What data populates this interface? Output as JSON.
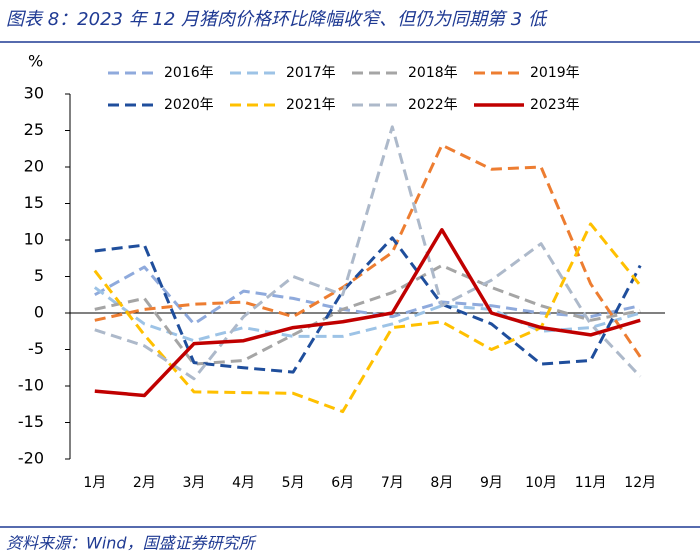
{
  "chart_data": {
    "type": "line",
    "title": "图表 8：2023 年 12 月猪肉价格环比降幅收窄、但仍为同期第 3 低",
    "source": "资料来源：Wind，国盛证券研究所",
    "y_unit": "%",
    "categories": [
      "1月",
      "2月",
      "3月",
      "4月",
      "5月",
      "6月",
      "7月",
      "8月",
      "9月",
      "10月",
      "11月",
      "12月"
    ],
    "ylim": [
      -20,
      30
    ],
    "yticks": [
      -20,
      -15,
      -10,
      -5,
      0,
      5,
      10,
      15,
      20,
      25,
      30
    ],
    "grid": false,
    "series": [
      {
        "name": "2016年",
        "color": "#8faadc",
        "dashed": true,
        "values": [
          2.5,
          6.3,
          -1.5,
          3,
          2,
          0.5,
          -0.5,
          1.5,
          1,
          0,
          -0.5,
          1
        ]
      },
      {
        "name": "2017年",
        "color": "#9dc3e6",
        "dashed": true,
        "values": [
          3.5,
          -1.5,
          -3.8,
          -2,
          -3.2,
          -3.2,
          -1.5,
          1,
          0.5,
          -2.5,
          -2,
          0
        ]
      },
      {
        "name": "2018年",
        "color": "#a5a5a5",
        "dashed": true,
        "values": [
          0.5,
          2,
          -7,
          -6.5,
          -3,
          0.5,
          2.8,
          6.5,
          3.5,
          1,
          -1,
          0.3
        ]
      },
      {
        "name": "2019年",
        "color": "#ed7d31",
        "dashed": true,
        "values": [
          -1,
          0.5,
          1.2,
          1.5,
          -0.5,
          3.5,
          8.3,
          23,
          19.7,
          20,
          4,
          -6
        ]
      },
      {
        "name": "2020年",
        "color": "#1f4e9c",
        "dashed": true,
        "values": [
          8.5,
          9.3,
          -6.8,
          -7.5,
          -8.1,
          3,
          10.3,
          1.2,
          -1.5,
          -7,
          -6.5,
          6.5
        ]
      },
      {
        "name": "2021年",
        "color": "#ffc000",
        "dashed": true,
        "values": [
          5.8,
          -3,
          -10.8,
          -10.9,
          -11,
          -13.5,
          -2,
          -1.2,
          -5,
          -2,
          12.2,
          3.8
        ]
      },
      {
        "name": "2022年",
        "color": "#adb9ca",
        "dashed": true,
        "values": [
          -2.3,
          -4.5,
          -9,
          -0.5,
          5,
          2.5,
          25.5,
          1,
          4.5,
          9.5,
          -1.5,
          -8.7
        ]
      },
      {
        "name": "2023年",
        "color": "#c00000",
        "dashed": false,
        "values": [
          -10.7,
          -11.3,
          -4.2,
          -3.8,
          -2,
          -1.2,
          0,
          11.4,
          0,
          -2,
          -3,
          -1
        ]
      }
    ]
  }
}
